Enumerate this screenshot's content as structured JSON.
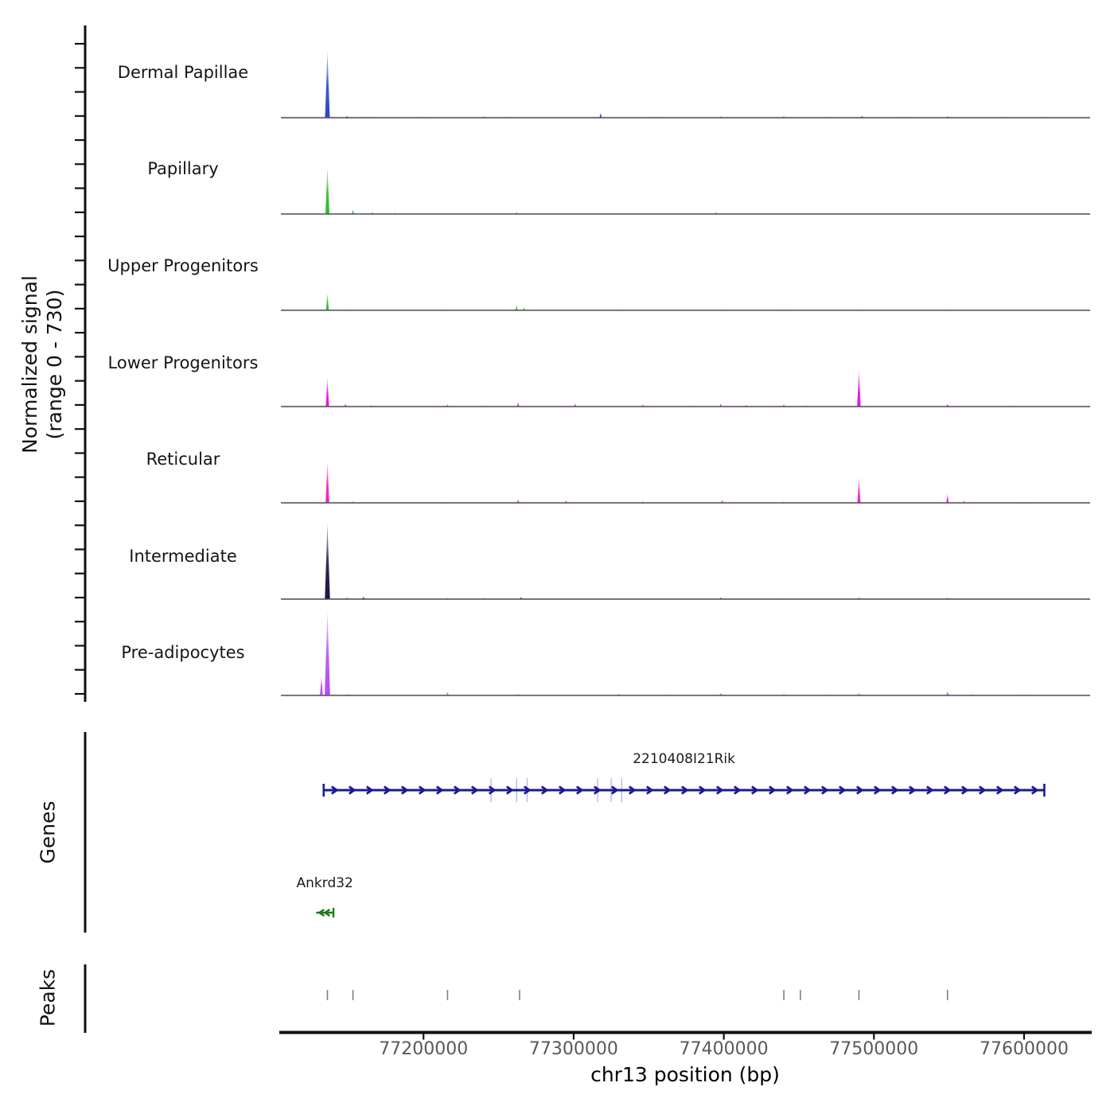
{
  "y_axis": {
    "label_line1": "Normalized signal",
    "label_line2": "(range 0 - 730)"
  },
  "sections": {
    "genes_label": "Genes",
    "peaks_label": "Peaks"
  },
  "chart_data": {
    "type": "area",
    "x_axis": {
      "label": "chr13 position (bp)",
      "range": [
        77105000,
        77644000
      ],
      "ticks": [
        77200000,
        77300000,
        77400000,
        77500000,
        77600000
      ],
      "tick_labels": [
        "77200000",
        "77300000",
        "77400000",
        "77500000",
        "77600000"
      ]
    },
    "signal_range": [
      0,
      730
    ],
    "tracks": [
      {
        "name": "Dermal Papillae",
        "color": "#2848cc",
        "peaks": [
          {
            "pos": 77136000,
            "value": 585
          },
          {
            "pos": 77149000,
            "value": 21
          },
          {
            "pos": 77163000,
            "value": 12
          },
          {
            "pos": 77200000,
            "value": 10
          },
          {
            "pos": 77240000,
            "value": 14
          },
          {
            "pos": 77258000,
            "value": 10
          },
          {
            "pos": 77318000,
            "value": 48
          },
          {
            "pos": 77355000,
            "value": 10
          },
          {
            "pos": 77398000,
            "value": 14
          },
          {
            "pos": 77440000,
            "value": 16
          },
          {
            "pos": 77470000,
            "value": 10
          },
          {
            "pos": 77492000,
            "value": 20
          },
          {
            "pos": 77520000,
            "value": 10
          },
          {
            "pos": 77549000,
            "value": 16
          },
          {
            "pos": 77585000,
            "value": 10
          },
          {
            "pos": 77615000,
            "value": 10
          }
        ]
      },
      {
        "name": "Papillary",
        "color": "#2eb82e",
        "peaks": [
          {
            "pos": 77136000,
            "value": 413
          },
          {
            "pos": 77153000,
            "value": 41
          },
          {
            "pos": 77166000,
            "value": 21
          },
          {
            "pos": 77181000,
            "value": 14
          },
          {
            "pos": 77216000,
            "value": 10
          },
          {
            "pos": 77262000,
            "value": 21
          },
          {
            "pos": 77330000,
            "value": 10
          },
          {
            "pos": 77395000,
            "value": 21
          },
          {
            "pos": 77430000,
            "value": 10
          },
          {
            "pos": 77460000,
            "value": 12
          },
          {
            "pos": 77500000,
            "value": 10
          },
          {
            "pos": 77549000,
            "value": 10
          },
          {
            "pos": 77590000,
            "value": 10
          }
        ]
      },
      {
        "name": "Upper Progenitors",
        "color": "#2eb82e",
        "peaks": [
          {
            "pos": 77136000,
            "value": 152
          },
          {
            "pos": 77150000,
            "value": 10
          },
          {
            "pos": 77216000,
            "value": 8
          },
          {
            "pos": 77262000,
            "value": 48
          },
          {
            "pos": 77267000,
            "value": 28
          },
          {
            "pos": 77330000,
            "value": 8
          },
          {
            "pos": 77398000,
            "value": 10
          },
          {
            "pos": 77440000,
            "value": 10
          },
          {
            "pos": 77492000,
            "value": 10
          },
          {
            "pos": 77549000,
            "value": 8
          }
        ]
      },
      {
        "name": "Lower Progenitors",
        "color": "#e80ce8",
        "peaks": [
          {
            "pos": 77136000,
            "value": 255
          },
          {
            "pos": 77148000,
            "value": 28
          },
          {
            "pos": 77165000,
            "value": 14
          },
          {
            "pos": 77216000,
            "value": 21
          },
          {
            "pos": 77240000,
            "value": 10
          },
          {
            "pos": 77263000,
            "value": 41
          },
          {
            "pos": 77301000,
            "value": 28
          },
          {
            "pos": 77346000,
            "value": 21
          },
          {
            "pos": 77380000,
            "value": 12
          },
          {
            "pos": 77398000,
            "value": 28
          },
          {
            "pos": 77415000,
            "value": 16
          },
          {
            "pos": 77440000,
            "value": 21
          },
          {
            "pos": 77455000,
            "value": 12
          },
          {
            "pos": 77490000,
            "value": 324
          },
          {
            "pos": 77520000,
            "value": 10
          },
          {
            "pos": 77549000,
            "value": 24
          },
          {
            "pos": 77590000,
            "value": 10
          }
        ]
      },
      {
        "name": "Reticular",
        "color": "#ee22bb",
        "peaks": [
          {
            "pos": 77136000,
            "value": 358
          },
          {
            "pos": 77153000,
            "value": 14
          },
          {
            "pos": 77216000,
            "value": 10
          },
          {
            "pos": 77263000,
            "value": 34
          },
          {
            "pos": 77295000,
            "value": 24
          },
          {
            "pos": 77346000,
            "value": 14
          },
          {
            "pos": 77399000,
            "value": 28
          },
          {
            "pos": 77440000,
            "value": 14
          },
          {
            "pos": 77490000,
            "value": 227
          },
          {
            "pos": 77549000,
            "value": 83
          },
          {
            "pos": 77560000,
            "value": 21
          },
          {
            "pos": 77600000,
            "value": 10
          }
        ]
      },
      {
        "name": "Intermediate",
        "color": "#1f1048",
        "peaks": [
          {
            "pos": 77136000,
            "value": 661
          },
          {
            "pos": 77149000,
            "value": 16
          },
          {
            "pos": 77160000,
            "value": 24
          },
          {
            "pos": 77216000,
            "value": 10
          },
          {
            "pos": 77240000,
            "value": 12
          },
          {
            "pos": 77265000,
            "value": 21
          },
          {
            "pos": 77330000,
            "value": 8
          },
          {
            "pos": 77398000,
            "value": 16
          },
          {
            "pos": 77440000,
            "value": 10
          },
          {
            "pos": 77490000,
            "value": 16
          },
          {
            "pos": 77549000,
            "value": 14
          },
          {
            "pos": 77600000,
            "value": 8
          }
        ]
      },
      {
        "name": "Pre-adipocytes",
        "color": "#b44df0",
        "peaks": [
          {
            "pos": 77132000,
            "value": 172
          },
          {
            "pos": 77136000,
            "value": 730
          },
          {
            "pos": 77150000,
            "value": 14
          },
          {
            "pos": 77216000,
            "value": 34
          },
          {
            "pos": 77263000,
            "value": 16
          },
          {
            "pos": 77330000,
            "value": 16
          },
          {
            "pos": 77365000,
            "value": 10
          },
          {
            "pos": 77398000,
            "value": 24
          },
          {
            "pos": 77440000,
            "value": 16
          },
          {
            "pos": 77470000,
            "value": 10
          },
          {
            "pos": 77490000,
            "value": 24
          },
          {
            "pos": 77549000,
            "value": 41
          },
          {
            "pos": 77565000,
            "value": 14
          },
          {
            "pos": 77600000,
            "value": 10
          }
        ]
      }
    ],
    "genes": [
      {
        "name": "2210408I21Rik",
        "start": 77133500,
        "end": 77613500,
        "strand": "+",
        "color": "#1a1a96",
        "exon_marks": [
          77245000,
          77262000,
          77269000,
          77316000,
          77325000,
          77332000
        ]
      },
      {
        "name": "Ankrd32",
        "start": 77128500,
        "end": 77140000,
        "strand": "-",
        "color": "#1d7a1d",
        "exon_marks": []
      }
    ],
    "peak_calls": [
      77136000,
      77153000,
      77216000,
      77264000,
      77440000,
      77451000,
      77490000,
      77549000
    ]
  }
}
